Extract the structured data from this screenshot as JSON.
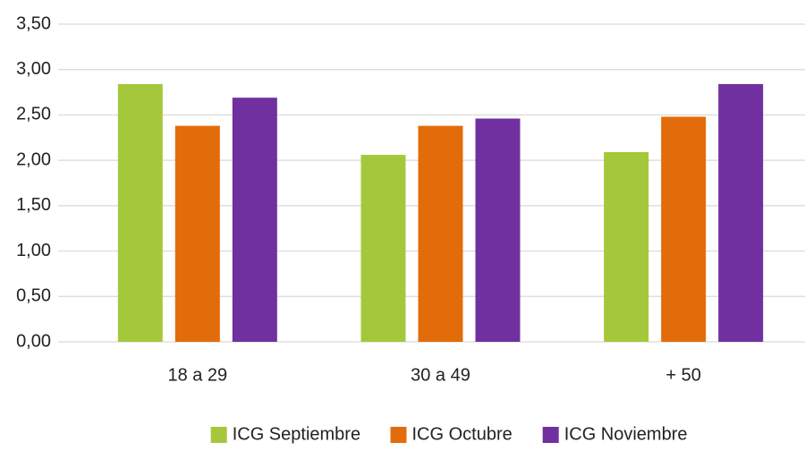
{
  "chart_data": {
    "type": "bar",
    "categories": [
      "18 a 29",
      "30 a 49",
      "+ 50"
    ],
    "series": [
      {
        "name": "ICG Septiembre",
        "color": "#a5c83a",
        "values": [
          2.84,
          2.06,
          2.09
        ]
      },
      {
        "name": "ICG Octubre",
        "color": "#e36c0a",
        "values": [
          2.38,
          2.38,
          2.48
        ]
      },
      {
        "name": "ICG Noviembre",
        "color": "#7030a0",
        "values": [
          2.69,
          2.46,
          2.84
        ]
      }
    ],
    "ylim": [
      0,
      3.5
    ],
    "yticks": [
      {
        "value": 0,
        "label": "0,00"
      },
      {
        "value": 0.5,
        "label": "0,50"
      },
      {
        "value": 1,
        "label": "1,00"
      },
      {
        "value": 1.5,
        "label": "1,50"
      },
      {
        "value": 2,
        "label": "2,00"
      },
      {
        "value": 2.5,
        "label": "2,50"
      },
      {
        "value": 3,
        "label": "3,00"
      },
      {
        "value": 3.5,
        "label": "3,50"
      }
    ],
    "grid": true,
    "legend": "bottom"
  }
}
